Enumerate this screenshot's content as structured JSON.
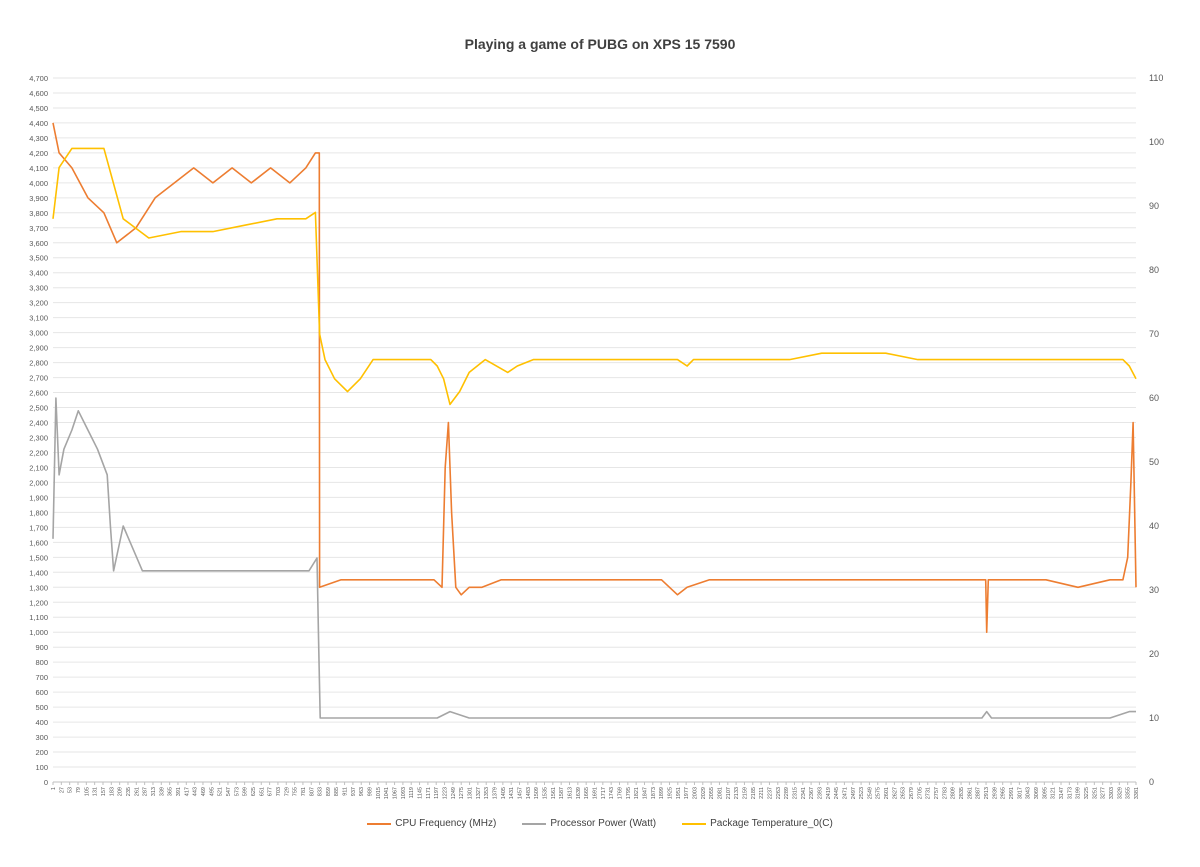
{
  "chart_data": {
    "type": "line",
    "title": "Playing a game of PUBG on XPS 15 7590",
    "xlabel": "",
    "ylabel": "",
    "y_left": {
      "min": 0,
      "max": 4700,
      "step": 100
    },
    "y_right": {
      "min": 0,
      "max": 110,
      "step": 10
    },
    "x_range": [
      1,
      3381
    ],
    "x_tick_labels": [
      "1",
      "27",
      "53",
      "79",
      "105",
      "131",
      "157",
      "183",
      "209",
      "235",
      "261",
      "287",
      "313",
      "339",
      "365",
      "391",
      "417",
      "443",
      "469",
      "495",
      "521",
      "547",
      "573",
      "599",
      "625",
      "651",
      "677",
      "703",
      "729",
      "755",
      "781",
      "807",
      "833",
      "859",
      "885",
      "911",
      "937",
      "963",
      "989",
      "1015",
      "1041",
      "1067",
      "1093",
      "1119",
      "1145",
      "1171",
      "1197",
      "1223",
      "1249",
      "1275",
      "1301",
      "1327",
      "1353",
      "1379",
      "1405",
      "1431",
      "1457",
      "1483",
      "1509",
      "1535",
      "1561",
      "1587",
      "1613",
      "1639",
      "1665",
      "1691",
      "1717",
      "1743",
      "1769",
      "1795",
      "1821",
      "1847",
      "1873",
      "1899",
      "1925",
      "1951",
      "1977",
      "2003",
      "2029",
      "2055",
      "2081",
      "2107",
      "2133",
      "2159",
      "2185",
      "2211",
      "2237",
      "2263",
      "2289",
      "2315",
      "2341",
      "2367",
      "2393",
      "2419",
      "2445",
      "2471",
      "2497",
      "2523",
      "2549",
      "2575",
      "2601",
      "2627",
      "2653",
      "2679",
      "2705",
      "2731",
      "2757",
      "2783",
      "2809",
      "2835",
      "2861",
      "2887",
      "2913",
      "2939",
      "2965",
      "2991",
      "3017",
      "3043",
      "3069",
      "3095",
      "3121",
      "3147",
      "3173",
      "3199",
      "3225",
      "3251",
      "3277",
      "3303",
      "3329",
      "3355",
      "3381"
    ],
    "grid": true,
    "legend_position": "bottom",
    "series": [
      {
        "name": "CPU Frequency (MHz)",
        "axis": "left",
        "color": "#ED7D31",
        "x": [
          1,
          20,
          60,
          110,
          160,
          200,
          260,
          320,
          380,
          440,
          500,
          560,
          620,
          680,
          740,
          790,
          820,
          832,
          833,
          900,
          1000,
          1100,
          1190,
          1215,
          1225,
          1235,
          1245,
          1258,
          1275,
          1300,
          1340,
          1400,
          1500,
          1600,
          1700,
          1800,
          1900,
          1950,
          1980,
          2050,
          2200,
          2400,
          2600,
          2800,
          2912,
          2915,
          2920,
          3000,
          3100,
          3200,
          3300,
          3340,
          3355,
          3365,
          3372,
          3381
        ],
        "values": [
          4400,
          4200,
          4100,
          3900,
          3800,
          3600,
          3700,
          3900,
          4000,
          4100,
          4000,
          4100,
          4000,
          4100,
          4000,
          4100,
          4200,
          4200,
          1300,
          1350,
          1350,
          1350,
          1350,
          1300,
          2100,
          2400,
          1800,
          1300,
          1250,
          1300,
          1300,
          1350,
          1350,
          1350,
          1350,
          1350,
          1350,
          1250,
          1300,
          1350,
          1350,
          1350,
          1350,
          1350,
          1350,
          1000,
          1350,
          1350,
          1350,
          1300,
          1350,
          1350,
          1500,
          2000,
          2400,
          1300
        ]
      },
      {
        "name": "Processor Power (Watt)",
        "axis": "right",
        "color": "#A5A5A5",
        "x": [
          1,
          10,
          20,
          35,
          60,
          80,
          110,
          140,
          170,
          180,
          190,
          220,
          280,
          340,
          400,
          460,
          520,
          580,
          640,
          700,
          760,
          800,
          825,
          830,
          835,
          900,
          1100,
          1200,
          1240,
          1300,
          1400,
          1600,
          1800,
          2000,
          2400,
          2900,
          2915,
          2930,
          3300,
          3360,
          3381
        ],
        "values": [
          38,
          60,
          48,
          52,
          55,
          58,
          55,
          52,
          48,
          40,
          33,
          40,
          33,
          33,
          33,
          33,
          33,
          33,
          33,
          33,
          33,
          33,
          35,
          22,
          10,
          10,
          10,
          10,
          11,
          10,
          10,
          10,
          10,
          10,
          10,
          10,
          11,
          10,
          10,
          11,
          11
        ]
      },
      {
        "name": "Package Temperature_0(C)",
        "axis": "right",
        "color": "#FFC000",
        "x": [
          1,
          20,
          60,
          110,
          160,
          220,
          300,
          400,
          500,
          600,
          700,
          790,
          820,
          833,
          850,
          880,
          920,
          960,
          1000,
          1100,
          1180,
          1200,
          1220,
          1240,
          1270,
          1300,
          1350,
          1420,
          1450,
          1500,
          1700,
          1900,
          1950,
          1980,
          2000,
          2100,
          2300,
          2400,
          2500,
          2600,
          2700,
          2800,
          2900,
          3000,
          3100,
          3200,
          3300,
          3340,
          3360,
          3381
        ],
        "values": [
          88,
          96,
          99,
          99,
          99,
          88,
          85,
          86,
          86,
          87,
          88,
          88,
          89,
          70,
          66,
          63,
          61,
          63,
          66,
          66,
          66,
          65,
          63,
          59,
          61,
          64,
          66,
          64,
          65,
          66,
          66,
          66,
          66,
          65,
          66,
          66,
          66,
          67,
          67,
          67,
          66,
          66,
          66,
          66,
          66,
          66,
          66,
          66,
          65,
          63
        ]
      }
    ]
  }
}
